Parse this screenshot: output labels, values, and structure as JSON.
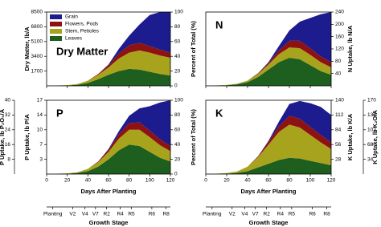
{
  "chart_data": [
    {
      "type": "area",
      "stacked": true,
      "title": "Dry Matter",
      "legend": "upper left",
      "x": [
        0,
        10,
        20,
        30,
        40,
        50,
        60,
        70,
        80,
        90,
        100,
        110,
        120
      ],
      "xlim": [
        0,
        120
      ],
      "xticks": [
        0,
        20,
        40,
        60,
        80,
        100,
        120
      ],
      "ylim": [
        0,
        100
      ],
      "yticks": [
        0,
        20,
        40,
        60,
        80,
        100
      ],
      "ylabel": "Percent of Total (%)",
      "uptake_axes": [
        {
          "side": "left",
          "label": "Dry Matter, lb/A",
          "lim": [
            0,
            8500
          ],
          "ticks": [
            1700,
            3400,
            5100,
            6800,
            8500
          ]
        }
      ],
      "series": [
        {
          "name": "Grain",
          "color": "#1c1c8e",
          "values": [
            0,
            0,
            0,
            0,
            0,
            0,
            1,
            6,
            13,
            25,
            42,
            51,
            55
          ]
        },
        {
          "name": "Flowers, Pods",
          "color": "#8e1212",
          "values": [
            0,
            0,
            0,
            0,
            0,
            1,
            3,
            7,
            10,
            10,
            9,
            8,
            7
          ]
        },
        {
          "name": "Stem, Petioles",
          "color": "#a8a31c",
          "values": [
            0,
            0.2,
            0.4,
            1,
            3,
            6,
            10,
            17,
            22,
            26,
            26,
            25,
            24
          ]
        },
        {
          "name": "Leaves",
          "color": "#1e5e1e",
          "values": [
            0,
            0.3,
            0.6,
            1.5,
            4,
            9,
            15,
            20,
            23,
            22,
            19,
            16,
            14
          ]
        }
      ]
    },
    {
      "type": "area",
      "stacked": true,
      "title": "N",
      "x": [
        0,
        10,
        20,
        30,
        40,
        50,
        60,
        70,
        80,
        90,
        100,
        110,
        120
      ],
      "xlim": [
        0,
        120
      ],
      "xticks": [
        0,
        20,
        40,
        60,
        80,
        100,
        120
      ],
      "ylim": [
        0,
        100
      ],
      "uptake_axes": [
        {
          "side": "right",
          "label": "N Uptake, lb N/A",
          "lim": [
            0,
            240
          ],
          "ticks": [
            40,
            80,
            120,
            160,
            200,
            240
          ]
        }
      ],
      "series": [
        {
          "color": "#1c1c8e",
          "values": [
            0,
            0,
            0,
            0,
            0,
            0,
            1,
            6,
            14,
            26,
            41,
            57,
            68
          ]
        },
        {
          "color": "#8e1212",
          "values": [
            0,
            0,
            0,
            0,
            0,
            1,
            2,
            5,
            9,
            10,
            9,
            8,
            7
          ]
        },
        {
          "color": "#a8a31c",
          "values": [
            0,
            0.2,
            0.4,
            0.8,
            2,
            4,
            7,
            11,
            14,
            15,
            14,
            12,
            10
          ]
        },
        {
          "color": "#1e5e1e",
          "values": [
            0,
            0.4,
            0.8,
            2,
            5,
            12,
            22,
            32,
            38,
            36,
            28,
            20,
            15
          ]
        }
      ]
    },
    {
      "type": "area",
      "stacked": true,
      "title": "P",
      "x": [
        0,
        10,
        20,
        30,
        40,
        50,
        60,
        70,
        80,
        90,
        100,
        110,
        120
      ],
      "xlim": [
        0,
        120
      ],
      "xticks": [
        0,
        20,
        40,
        60,
        80,
        100,
        120
      ],
      "xlabel": "Days After Planting",
      "growth_stages": [
        "Planting",
        "V2",
        "V4",
        "V7",
        "R2",
        "R4",
        "R5",
        "R6",
        "R8"
      ],
      "growth_stage_label": "Growth Stage",
      "ylim": [
        0,
        100
      ],
      "yticks": [
        0,
        20,
        40,
        60,
        80,
        100
      ],
      "ylabel": "Percent of Total (%)",
      "uptake_axes": [
        {
          "side": "left",
          "label": "P Uptake, lb P/A",
          "lim": [
            0,
            17.46
          ],
          "ticks": [
            {
              "value": 3.49,
              "label": "3"
            },
            {
              "value": 6.98,
              "label": "7"
            },
            {
              "value": 10.48,
              "label": "10"
            },
            {
              "value": 13.97,
              "label": "14"
            },
            {
              "value": 17.46,
              "label": "17"
            }
          ]
        },
        {
          "side": "left",
          "label": "P Uptake, lb P₂O₅/A",
          "lim": [
            0,
            40
          ],
          "ticks": [
            8,
            16,
            24,
            32,
            40
          ]
        }
      ],
      "series": [
        {
          "color": "#1c1c8e",
          "values": [
            0,
            0,
            0,
            0,
            0,
            0,
            1,
            4,
            10,
            19,
            33,
            50,
            62
          ]
        },
        {
          "color": "#8e1212",
          "values": [
            0,
            0,
            0,
            0,
            0,
            1,
            3,
            6,
            9,
            10,
            9,
            8,
            7
          ]
        },
        {
          "color": "#a8a31c",
          "values": [
            0,
            0.2,
            0.4,
            1,
            3,
            6,
            10,
            16,
            20,
            22,
            20,
            17,
            14
          ]
        },
        {
          "color": "#1e5e1e",
          "values": [
            0,
            0.3,
            0.6,
            1.5,
            4,
            10,
            20,
            32,
            40,
            38,
            30,
            22,
            17
          ]
        }
      ]
    },
    {
      "type": "area",
      "stacked": true,
      "title": "K",
      "x": [
        0,
        10,
        20,
        30,
        40,
        50,
        60,
        70,
        80,
        90,
        100,
        110,
        120
      ],
      "xlim": [
        0,
        120
      ],
      "xticks": [
        0,
        20,
        40,
        60,
        80,
        100,
        120
      ],
      "xlabel": "Days After Planting",
      "growth_stages": [
        "Planting",
        "V2",
        "V4",
        "V7",
        "R2",
        "R4",
        "R5",
        "R6",
        "R8"
      ],
      "growth_stage_label": "Growth Stage",
      "ylim": [
        0,
        100
      ],
      "uptake_axes": [
        {
          "side": "right",
          "label": "K Uptake, lb K/A",
          "lim": [
            0,
            140
          ],
          "ticks": [
            28,
            56,
            84,
            112,
            140
          ]
        },
        {
          "side": "right",
          "label": "K Uptake, lb K₂O/A",
          "lim": [
            0,
            170
          ],
          "ticks": [
            34,
            68,
            102,
            136,
            170
          ]
        }
      ],
      "series": [
        {
          "color": "#1c1c8e",
          "values": [
            0,
            0,
            0,
            0,
            0,
            0,
            1,
            6,
            16,
            24,
            32,
            38,
            37
          ]
        },
        {
          "color": "#8e1212",
          "values": [
            0,
            0,
            0,
            0,
            0,
            1,
            4,
            8,
            12,
            12,
            11,
            10,
            9
          ]
        },
        {
          "color": "#a8a31c",
          "values": [
            0,
            0.3,
            0.8,
            2,
            6,
            14,
            26,
            38,
            45,
            42,
            35,
            28,
            22
          ]
        },
        {
          "color": "#1e5e1e",
          "values": [
            0,
            0.3,
            0.6,
            1.5,
            4,
            9,
            14,
            19,
            22,
            21,
            18,
            15,
            12
          ]
        }
      ]
    }
  ]
}
